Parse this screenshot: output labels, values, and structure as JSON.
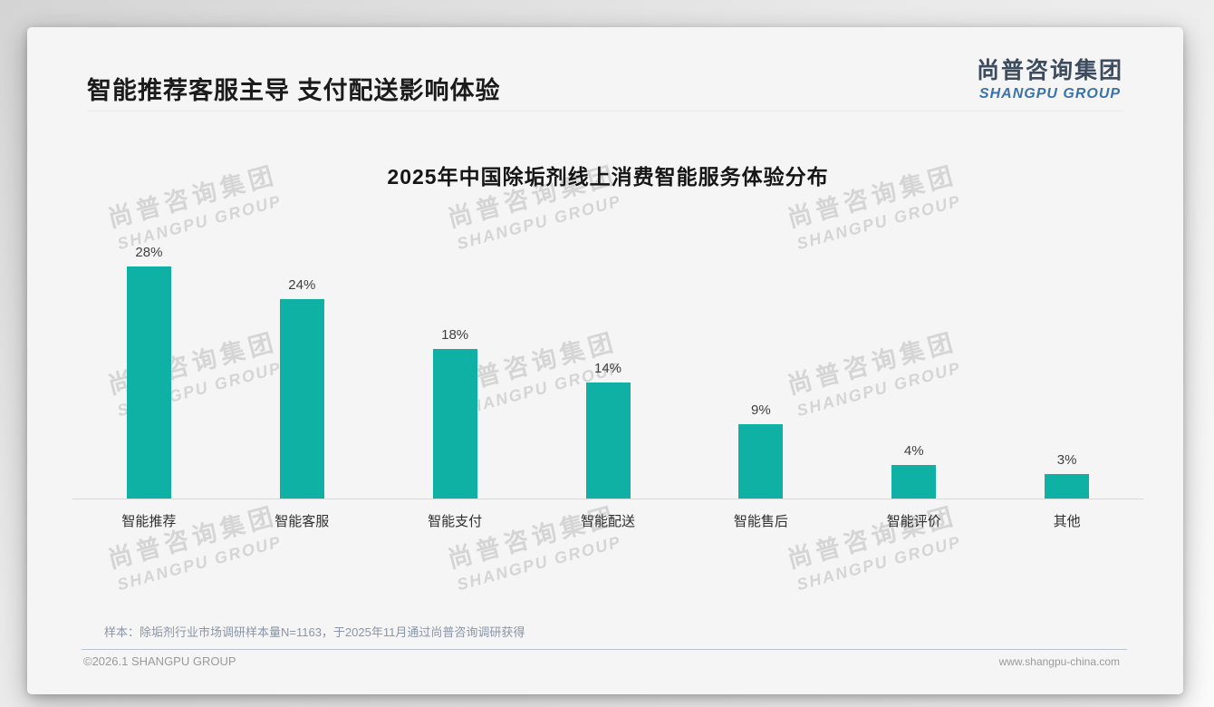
{
  "page": {
    "title": "智能推荐客服主导 支付配送影响体验",
    "logo": {
      "cn": "尚普咨询集团",
      "en": "SHANGPU GROUP"
    },
    "watermark": {
      "line1": "尚普咨询集团",
      "line2": "SHANGPU GROUP"
    },
    "note": "样本：除垢剂行业市场调研样本量N=1163，于2025年11月通过尚普咨询调研获得",
    "footer": {
      "copyright": "©2026.1 SHANGPU GROUP",
      "website": "www.shangpu-china.com"
    }
  },
  "chart_data": {
    "type": "bar",
    "title": "2025年中国除垢剂线上消费智能服务体验分布",
    "categories": [
      "智能推荐",
      "智能客服",
      "智能支付",
      "智能配送",
      "智能售后",
      "智能评价",
      "其他"
    ],
    "values": [
      28,
      24,
      18,
      14,
      9,
      4,
      3
    ],
    "value_labels": [
      "28%",
      "24%",
      "18%",
      "14%",
      "9%",
      "4%",
      "3%"
    ],
    "unit": "%",
    "bar_color": "#10b1a5",
    "ylim": [
      0,
      30
    ],
    "grid": false,
    "legend": false,
    "xlabel": "",
    "ylabel": ""
  }
}
